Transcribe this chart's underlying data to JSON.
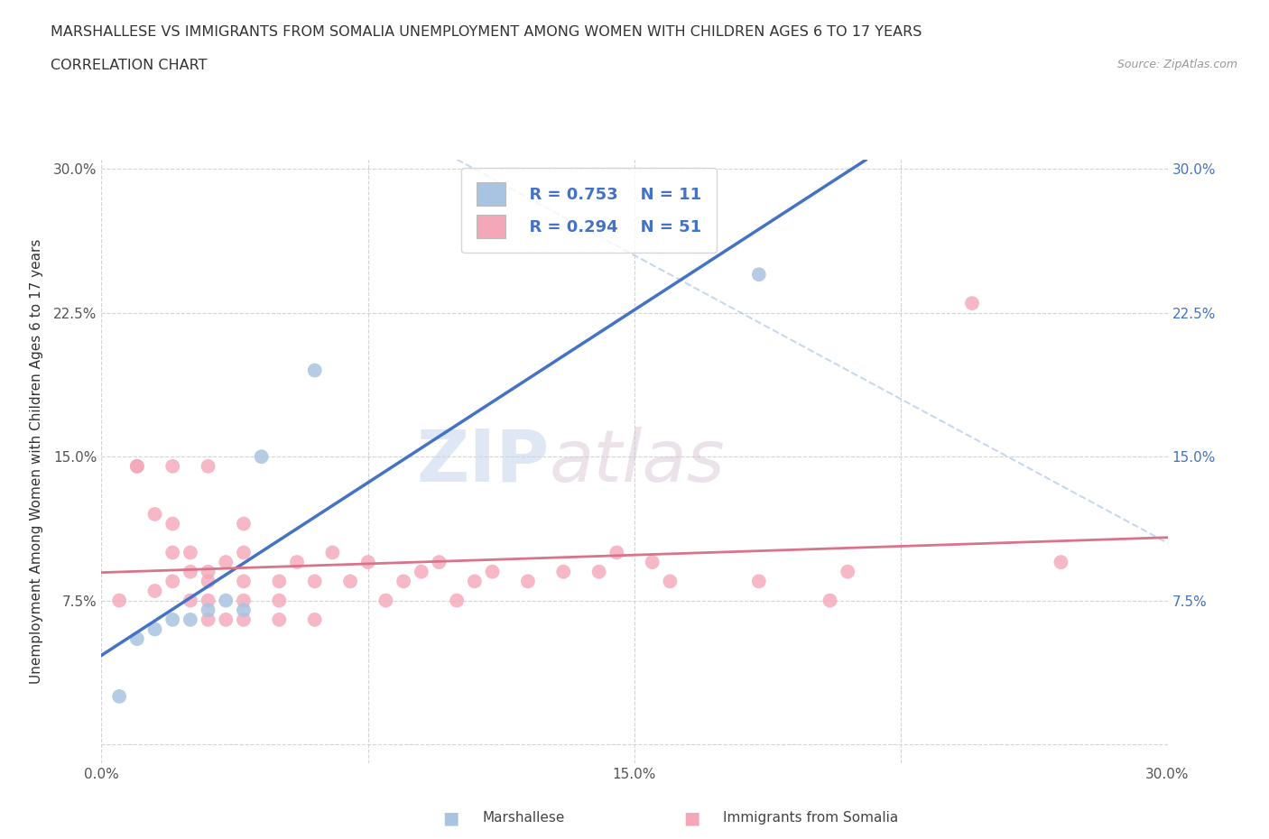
{
  "title_line1": "MARSHALLESE VS IMMIGRANTS FROM SOMALIA UNEMPLOYMENT AMONG WOMEN WITH CHILDREN AGES 6 TO 17 YEARS",
  "title_line2": "CORRELATION CHART",
  "source_text": "Source: ZipAtlas.com",
  "ylabel": "Unemployment Among Women with Children Ages 6 to 17 years",
  "xlim": [
    0.0,
    0.3
  ],
  "ylim": [
    -0.01,
    0.305
  ],
  "xticks": [
    0.0,
    0.075,
    0.15,
    0.225,
    0.3
  ],
  "yticks": [
    0.0,
    0.075,
    0.15,
    0.225,
    0.3
  ],
  "xticklabels": [
    "0.0%",
    "",
    "15.0%",
    "",
    "30.0%"
  ],
  "yticklabels": [
    "",
    "7.5%",
    "15.0%",
    "22.5%",
    "30.0%"
  ],
  "watermark_zip": "ZIP",
  "watermark_atlas": "atlas",
  "legend_r1": "R = 0.753",
  "legend_n1": "N = 11",
  "legend_r2": "R = 0.294",
  "legend_n2": "N = 51",
  "legend_label1": "Marshallese",
  "legend_label2": "Immigrants from Somalia",
  "color_marshallese": "#a8c4e0",
  "color_somalia": "#f4a7b9",
  "color_line1": "#4472c4",
  "color_line2": "#d9738a",
  "color_diag": "#b0c8e8",
  "marshallese_x": [
    0.005,
    0.01,
    0.015,
    0.02,
    0.025,
    0.03,
    0.035,
    0.04,
    0.045,
    0.06,
    0.185
  ],
  "marshallese_y": [
    0.025,
    0.055,
    0.06,
    0.065,
    0.065,
    0.07,
    0.075,
    0.07,
    0.15,
    0.195,
    0.245
  ],
  "somalia_x": [
    0.005,
    0.01,
    0.01,
    0.015,
    0.015,
    0.02,
    0.02,
    0.02,
    0.02,
    0.025,
    0.025,
    0.025,
    0.03,
    0.03,
    0.03,
    0.03,
    0.03,
    0.035,
    0.035,
    0.04,
    0.04,
    0.04,
    0.04,
    0.04,
    0.05,
    0.05,
    0.05,
    0.055,
    0.06,
    0.06,
    0.065,
    0.07,
    0.075,
    0.08,
    0.085,
    0.09,
    0.095,
    0.1,
    0.105,
    0.11,
    0.12,
    0.13,
    0.14,
    0.145,
    0.155,
    0.16,
    0.185,
    0.205,
    0.21,
    0.245,
    0.27
  ],
  "somalia_y": [
    0.075,
    0.145,
    0.145,
    0.08,
    0.12,
    0.085,
    0.1,
    0.115,
    0.145,
    0.075,
    0.09,
    0.1,
    0.065,
    0.075,
    0.085,
    0.09,
    0.145,
    0.065,
    0.095,
    0.065,
    0.075,
    0.085,
    0.1,
    0.115,
    0.065,
    0.075,
    0.085,
    0.095,
    0.065,
    0.085,
    0.1,
    0.085,
    0.095,
    0.075,
    0.085,
    0.09,
    0.095,
    0.075,
    0.085,
    0.09,
    0.085,
    0.09,
    0.09,
    0.1,
    0.095,
    0.085,
    0.085,
    0.075,
    0.09,
    0.23,
    0.095
  ]
}
